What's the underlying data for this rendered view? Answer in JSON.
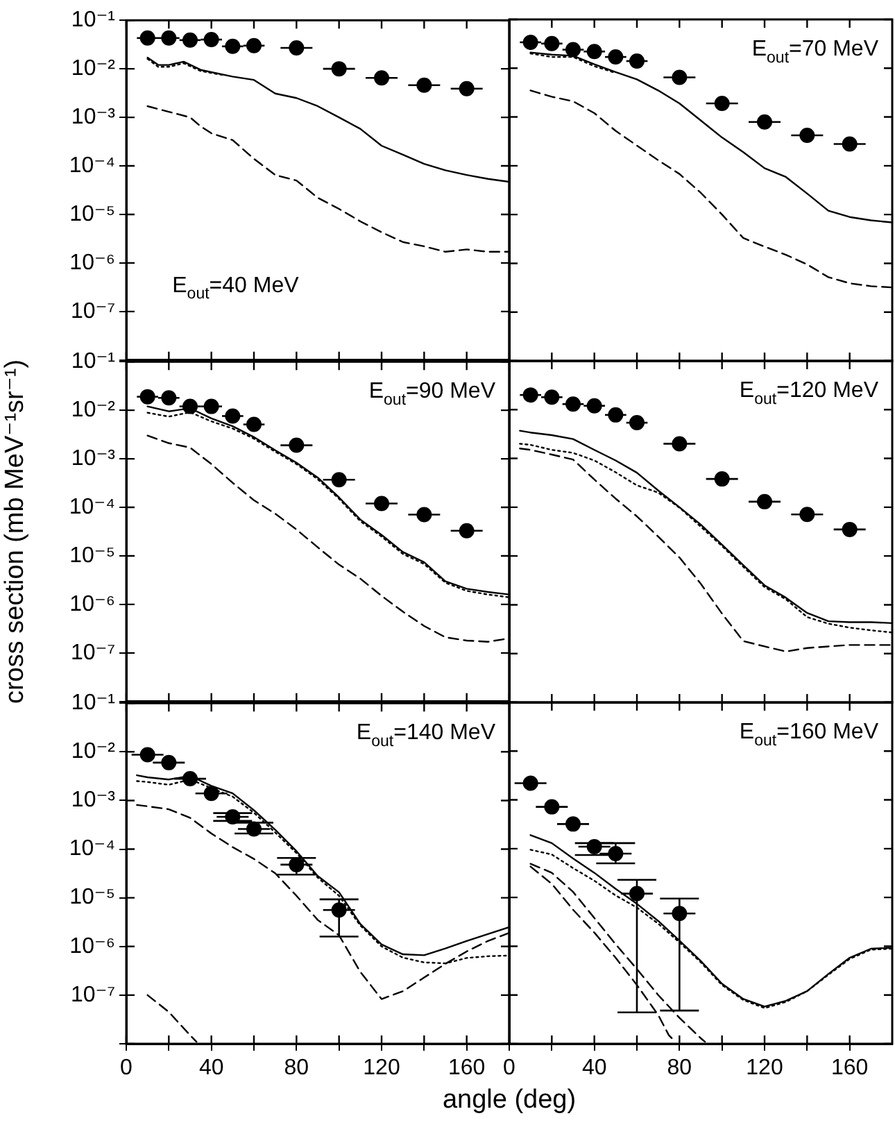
{
  "chart_data": [
    {
      "type": "line",
      "log": "y",
      "xlim": [
        0,
        180
      ],
      "ylim": [
        1e-08,
        0.1
      ],
      "tick_labels": "y",
      "xticks": [
        0,
        {
          "value": 20,
          "label": null
        },
        40,
        {
          "value": 60,
          "label": null
        },
        80,
        {
          "value": 100,
          "label": null
        },
        120,
        {
          "value": 140,
          "label": null
        },
        160
      ],
      "yticks": [
        {
          "value": 0.1,
          "label": "10⁻¹"
        },
        {
          "value": 0.01,
          "label": "10⁻²"
        },
        {
          "value": 0.001,
          "label": "10⁻³"
        },
        {
          "value": 0.0001,
          "label": "10⁻⁴"
        },
        {
          "value": 1e-05,
          "label": "10⁻⁵"
        },
        {
          "value": 1e-06,
          "label": "10⁻⁶"
        },
        {
          "value": 1e-07,
          "label": "10⁻⁷"
        },
        {
          "value": 1e-08,
          "label": null
        }
      ],
      "annotations": [
        "E$_{out}$=40 MeV"
      ],
      "series": [
        {
          "type": "scatter",
          "color": "#000000",
          "marker": "circle",
          "x": [
            10,
            20,
            30,
            40,
            50,
            60,
            80,
            100,
            120,
            140,
            160
          ],
          "values": [
            0.043,
            0.043,
            0.039,
            0.04,
            0.029,
            0.03,
            0.027,
            0.01,
            0.0065,
            0.0046,
            0.0039
          ],
          "xerrors": [
            5,
            5,
            5,
            5,
            5,
            5,
            7.5,
            7.5,
            7.5,
            7.5,
            7.5
          ]
        },
        {
          "type": "line",
          "color": "#000000",
          "line_style": "solid",
          "x": [
            10,
            15,
            20,
            27,
            35,
            50,
            60,
            70,
            80,
            90,
            100,
            110,
            120,
            130,
            140,
            150,
            160,
            170,
            180
          ],
          "values": [
            0.017,
            0.012,
            0.012,
            0.014,
            0.0095,
            0.0069,
            0.0059,
            0.0031,
            0.0025,
            0.0017,
            0.001,
            0.00058,
            0.00026,
            0.00017,
            0.00011,
            8.1e-05,
            6.5e-05,
            5.4e-05,
            4.7e-05
          ]
        },
        {
          "type": "line",
          "color": "#000000",
          "line_style": "dotted",
          "x": [
            10,
            15,
            20,
            27,
            35,
            45
          ],
          "values": [
            0.016,
            0.011,
            0.011,
            0.013,
            0.009,
            0.0075
          ]
        },
        {
          "type": "line",
          "color": "#000000",
          "line_style": "dashed",
          "x": [
            10,
            20,
            30,
            35,
            40,
            50,
            60,
            70,
            80,
            90,
            100,
            110,
            120,
            130,
            140,
            150,
            160,
            170,
            180
          ],
          "values": [
            0.0017,
            0.0013,
            0.001,
            0.00065,
            0.00047,
            0.00034,
            0.00014,
            6.5e-05,
            5e-05,
            2.2e-05,
            1.3e-05,
            7.2e-06,
            4.3e-06,
            2.7e-06,
            2.2e-06,
            1.7e-06,
            1.9e-06,
            1.7e-06,
            1.7e-06
          ]
        }
      ]
    },
    {
      "type": "line",
      "log": "y",
      "xlim": [
        0,
        180
      ],
      "ylim": [
        1e-08,
        0.1
      ],
      "tick_labels": false,
      "xticks": [
        0,
        {
          "value": 20,
          "label": null
        },
        40,
        {
          "value": 60,
          "label": null
        },
        80,
        {
          "value": 100,
          "label": null
        },
        120,
        {
          "value": 140,
          "label": null
        },
        160
      ],
      "yticks": [
        {
          "value": 0.1,
          "label": null
        },
        {
          "value": 0.01,
          "label": null
        },
        {
          "value": 0.001,
          "label": null
        },
        {
          "value": 0.0001,
          "label": null
        },
        {
          "value": 1e-05,
          "label": null
        },
        {
          "value": 1e-06,
          "label": null
        },
        {
          "value": 1e-07,
          "label": null
        },
        {
          "value": 1e-08,
          "label": null
        }
      ],
      "annotations": [
        "E$_{out}$=70 MeV"
      ],
      "series": [
        {
          "type": "scatter",
          "color": "#000000",
          "marker": "circle",
          "x": [
            10,
            20,
            30,
            40,
            50,
            60,
            80,
            100,
            120,
            140,
            160
          ],
          "values": [
            0.034,
            0.032,
            0.024,
            0.022,
            0.017,
            0.014,
            0.0065,
            0.0019,
            0.00079,
            0.00042,
            0.00028
          ],
          "xerrors": [
            5,
            5,
            5,
            5,
            5,
            5,
            7.5,
            7.5,
            7.5,
            7.5,
            7.5
          ]
        },
        {
          "type": "line",
          "color": "#000000",
          "line_style": "solid",
          "x": [
            10,
            20,
            30,
            40,
            50,
            60,
            70,
            80,
            90,
            100,
            110,
            120,
            130,
            140,
            150,
            160,
            170,
            180
          ],
          "values": [
            0.021,
            0.019,
            0.018,
            0.012,
            0.0083,
            0.0059,
            0.0035,
            0.0019,
            0.00085,
            0.00038,
            0.00019,
            8.9e-05,
            5.9e-05,
            2.7e-05,
            1.2e-05,
            8.9e-06,
            7.6e-06,
            6.9e-06
          ]
        },
        {
          "type": "line",
          "color": "#000000",
          "line_style": "dotted",
          "x": [
            10,
            20,
            30,
            40,
            50
          ],
          "values": [
            0.02,
            0.017,
            0.017,
            0.011,
            0.008
          ]
        },
        {
          "type": "line",
          "color": "#000000",
          "line_style": "dashed",
          "x": [
            10,
            20,
            30,
            40,
            50,
            60,
            70,
            80,
            90,
            100,
            110,
            120,
            130,
            140,
            150,
            160,
            170,
            180
          ],
          "values": [
            0.0035,
            0.0026,
            0.0021,
            0.0012,
            0.00052,
            0.00026,
            0.00013,
            6.8e-05,
            2.8e-05,
            1e-05,
            3.3e-06,
            2.2e-06,
            1.5e-06,
            9.5e-07,
            5.2e-07,
            3.9e-07,
            3.4e-07,
            3.2e-07
          ]
        }
      ]
    },
    {
      "type": "line",
      "log": "y",
      "xlim": [
        0,
        180
      ],
      "ylim": [
        1e-08,
        0.1
      ],
      "tick_labels": "y",
      "ylabel": "cross section (mb MeV⁻¹sr⁻¹)",
      "xticks": [
        0,
        {
          "value": 20,
          "label": null
        },
        40,
        {
          "value": 60,
          "label": null
        },
        80,
        {
          "value": 100,
          "label": null
        },
        120,
        {
          "value": 140,
          "label": null
        },
        160
      ],
      "yticks": [
        {
          "value": 0.1,
          "label": "10⁻¹"
        },
        {
          "value": 0.01,
          "label": "10⁻²"
        },
        {
          "value": 0.001,
          "label": "10⁻³"
        },
        {
          "value": 0.0001,
          "label": "10⁻⁴"
        },
        {
          "value": 1e-05,
          "label": "10⁻⁵"
        },
        {
          "value": 1e-06,
          "label": "10⁻⁶"
        },
        {
          "value": 1e-07,
          "label": "10⁻⁷"
        },
        {
          "value": 1e-08,
          "label": null
        }
      ],
      "annotations": [
        "E$_{out}$=90 MeV"
      ],
      "series": [
        {
          "type": "scatter",
          "color": "#000000",
          "marker": "circle",
          "x": [
            10,
            20,
            30,
            40,
            50,
            60,
            80,
            100,
            120,
            140,
            160
          ],
          "values": [
            0.019,
            0.018,
            0.012,
            0.012,
            0.0076,
            0.0051,
            0.0019,
            0.00037,
            0.00012,
            7.1e-05,
            3.3e-05
          ],
          "xerrors": [
            5,
            5,
            5,
            5,
            5,
            5,
            7.5,
            7.5,
            7.5,
            7.5,
            7.5
          ]
        },
        {
          "type": "line",
          "color": "#000000",
          "line_style": "solid",
          "x": [
            10,
            20,
            30,
            40,
            50,
            60,
            70,
            80,
            90,
            100,
            110,
            120,
            130,
            140,
            150,
            160,
            170,
            180
          ],
          "values": [
            0.012,
            0.0095,
            0.011,
            0.0068,
            0.0047,
            0.0028,
            0.0015,
            0.00083,
            0.00041,
            0.00016,
            5.6e-05,
            2.7e-05,
            1.2e-05,
            7.4e-06,
            3e-06,
            2.1e-06,
            1.8e-06,
            1.6e-06
          ]
        },
        {
          "type": "line",
          "color": "#000000",
          "line_style": "dotted",
          "x": [
            10,
            20,
            30,
            40,
            50,
            60,
            70,
            80,
            90,
            100,
            110,
            120,
            130,
            140,
            150,
            160,
            170,
            180
          ],
          "values": [
            0.0089,
            0.0074,
            0.0091,
            0.0059,
            0.0042,
            0.0026,
            0.0014,
            0.00078,
            0.00038,
            0.00015,
            5.2e-05,
            2.5e-05,
            1.1e-05,
            6.8e-06,
            2.8e-06,
            1.9e-06,
            1.6e-06,
            1.4e-06
          ]
        },
        {
          "type": "line",
          "color": "#000000",
          "line_style": "dashed",
          "x": [
            10,
            20,
            30,
            40,
            50,
            60,
            70,
            80,
            90,
            100,
            110,
            120,
            130,
            140,
            150,
            160,
            170,
            180
          ],
          "values": [
            0.003,
            0.0021,
            0.0017,
            0.00078,
            0.00032,
            0.00014,
            7.4e-05,
            3.5e-05,
            1.5e-05,
            6.6e-06,
            3.4e-06,
            1.5e-06,
            7.1e-07,
            3.6e-07,
            2.1e-07,
            1.8e-07,
            1.7e-07,
            2e-07
          ]
        }
      ]
    },
    {
      "type": "line",
      "log": "y",
      "xlim": [
        0,
        180
      ],
      "ylim": [
        1e-08,
        0.1
      ],
      "tick_labels": false,
      "xticks": [
        0,
        {
          "value": 20,
          "label": null
        },
        40,
        {
          "value": 60,
          "label": null
        },
        80,
        {
          "value": 100,
          "label": null
        },
        120,
        {
          "value": 140,
          "label": null
        },
        160
      ],
      "yticks": [
        {
          "value": 0.1,
          "label": null
        },
        {
          "value": 0.01,
          "label": null
        },
        {
          "value": 0.001,
          "label": null
        },
        {
          "value": 0.0001,
          "label": null
        },
        {
          "value": 1e-05,
          "label": null
        },
        {
          "value": 1e-06,
          "label": null
        },
        {
          "value": 1e-07,
          "label": null
        },
        {
          "value": 1e-08,
          "label": null
        }
      ],
      "annotations": [
        "E$_{out}$=120 MeV"
      ],
      "series": [
        {
          "type": "scatter",
          "color": "#000000",
          "marker": "circle",
          "x": [
            10,
            20,
            30,
            40,
            50,
            60,
            80,
            100,
            120,
            140,
            160
          ],
          "values": [
            0.02,
            0.018,
            0.013,
            0.012,
            0.0078,
            0.0054,
            0.002,
            0.00038,
            0.00013,
            7.1e-05,
            3.5e-05
          ],
          "xerrors": [
            5,
            5,
            5,
            5,
            5,
            5,
            7.5,
            7.5,
            7.5,
            7.5,
            7.5
          ]
        },
        {
          "type": "line",
          "color": "#000000",
          "line_style": "solid",
          "x": [
            5,
            10,
            20,
            30,
            40,
            50,
            60,
            70,
            80,
            90,
            100,
            110,
            120,
            130,
            140,
            150,
            160,
            170,
            180
          ],
          "values": [
            0.0037,
            0.0034,
            0.003,
            0.0025,
            0.0015,
            0.00091,
            0.00051,
            0.00022,
            0.0001,
            4.4e-05,
            1.7e-05,
            6.5e-06,
            2.5e-06,
            1.4e-06,
            6.8e-07,
            4.6e-07,
            4.4e-07,
            4.4e-07,
            4.2e-07
          ]
        },
        {
          "type": "line",
          "color": "#000000",
          "line_style": "dotted",
          "x": [
            5,
            10,
            20,
            30,
            40,
            50,
            60,
            70,
            80,
            90,
            100,
            110,
            120,
            130,
            140,
            150,
            160,
            170,
            180
          ],
          "values": [
            0.002,
            0.0019,
            0.0015,
            0.0013,
            0.00091,
            0.00052,
            0.00028,
            0.0002,
            9.8e-05,
            4e-05,
            1.6e-05,
            6e-06,
            2.3e-06,
            1.3e-06,
            5.6e-07,
            4.1e-07,
            3.4e-07,
            3e-07,
            2.7e-07
          ]
        },
        {
          "type": "line",
          "color": "#000000",
          "line_style": "dashed",
          "x": [
            5,
            10,
            20,
            30,
            40,
            50,
            60,
            70,
            80,
            90,
            100,
            110,
            120,
            130,
            140,
            150,
            160,
            170,
            180
          ],
          "values": [
            0.0016,
            0.0015,
            0.0012,
            0.00095,
            0.00037,
            0.00015,
            6.5e-05,
            2.5e-05,
            9.3e-06,
            2.7e-06,
            6.6e-07,
            1.8e-07,
            1.4e-07,
            1.1e-07,
            1.3e-07,
            1.4e-07,
            1.5e-07,
            1.5e-07,
            1.5e-07
          ]
        }
      ]
    },
    {
      "type": "line",
      "log": "y",
      "xlim": [
        0,
        180
      ],
      "ylim": [
        1e-08,
        0.1
      ],
      "xlabel": "angle (deg)",
      "xticks": [
        0,
        {
          "value": 20,
          "label": null
        },
        40,
        {
          "value": 60,
          "label": null
        },
        80,
        {
          "value": 100,
          "label": null
        },
        120,
        {
          "value": 140,
          "label": null
        },
        160
      ],
      "yticks": [
        {
          "value": 0.1,
          "label": "10⁻¹"
        },
        {
          "value": 0.01,
          "label": "10⁻²"
        },
        {
          "value": 0.001,
          "label": "10⁻³"
        },
        {
          "value": 0.0001,
          "label": "10⁻⁴"
        },
        {
          "value": 1e-05,
          "label": "10⁻⁵"
        },
        {
          "value": 1e-06,
          "label": "10⁻⁶"
        },
        {
          "value": 1e-07,
          "label": "10⁻⁷"
        },
        {
          "value": 1e-08,
          "label": null
        }
      ],
      "annotations": [
        "E$_{out}$=140 MeV"
      ],
      "series": [
        {
          "type": "scatter",
          "color": "#000000",
          "marker": "circle",
          "x": [
            10,
            20,
            30,
            40,
            50,
            60,
            80,
            100
          ],
          "values": [
            0.0087,
            0.006,
            0.0028,
            0.0014,
            0.00046,
            0.00026,
            4.8e-05,
            5.6e-06
          ],
          "xerrors": [
            7.5,
            7.5,
            7.5,
            7.5,
            7.5,
            7.5,
            7.5,
            7.5
          ],
          "errors": [
            null,
            null,
            null,
            null,
            [
              0.00038,
              0.00055
            ],
            [
              0.00021,
              0.00035
            ],
            [
              3e-05,
              6.6e-05
            ],
            [
              1.6e-06,
              9.3e-06
            ]
          ]
        },
        {
          "type": "line",
          "color": "#000000",
          "line_style": "solid",
          "x": [
            5,
            10,
            20,
            30,
            40,
            50,
            60,
            70,
            80,
            90,
            100,
            110,
            120,
            130,
            140,
            150,
            160,
            170,
            180
          ],
          "values": [
            0.0033,
            0.003,
            0.0027,
            0.0032,
            0.002,
            0.0014,
            0.00063,
            0.00025,
            9.1e-05,
            2.8e-05,
            1.3e-05,
            2.9e-06,
            1.1e-06,
            6.9e-07,
            6.6e-07,
            9.1e-07,
            1.3e-06,
            1.8e-06,
            2.5e-06
          ]
        },
        {
          "type": "line",
          "color": "#000000",
          "line_style": "dotted",
          "x": [
            5,
            10,
            20,
            30,
            40,
            50,
            60,
            70,
            80,
            90,
            100,
            110,
            120,
            130,
            140,
            150,
            160,
            170,
            180
          ],
          "values": [
            0.0025,
            0.0024,
            0.0021,
            0.0027,
            0.0018,
            0.0012,
            0.00056,
            0.00022,
            8.3e-05,
            2.6e-05,
            1.1e-05,
            2.7e-06,
            1e-06,
            5.9e-07,
            4.7e-07,
            4.5e-07,
            5.8e-07,
            6.3e-07,
            6.5e-07
          ]
        },
        {
          "type": "line",
          "color": "#000000",
          "line_style": "dashed",
          "x": [
            5,
            10,
            20,
            30,
            40,
            50,
            60,
            70,
            80,
            90,
            100,
            110,
            120,
            130,
            140,
            150,
            160,
            170,
            180
          ],
          "values": [
            0.00081,
            0.00076,
            0.00066,
            0.00044,
            0.00021,
            0.00011,
            6.3e-05,
            3.2e-05,
            1.1e-05,
            3.5e-06,
            1.7e-06,
            3e-07,
            8.3e-08,
            1.2e-07,
            2.3e-07,
            4.4e-07,
            7.9e-07,
            1.3e-06,
            1.9e-06
          ]
        },
        {
          "type": "line",
          "color": "#000000",
          "line_style": "dashed",
          "x": [
            10,
            20,
            30,
            33
          ],
          "values": [
            1e-07,
            4.5e-08,
            1.5e-08,
            1.1e-08
          ]
        }
      ]
    },
    {
      "type": "line",
      "log": "y",
      "xlim": [
        0,
        180
      ],
      "ylim": [
        1e-08,
        0.1
      ],
      "tick_labels": "x",
      "xticks": [
        0,
        {
          "value": 20,
          "label": null
        },
        40,
        {
          "value": 60,
          "label": null
        },
        80,
        {
          "value": 100,
          "label": null
        },
        120,
        {
          "value": 140,
          "label": null
        },
        160
      ],
      "yticks": [
        {
          "value": 0.1,
          "label": null
        },
        {
          "value": 0.01,
          "label": null
        },
        {
          "value": 0.001,
          "label": null
        },
        {
          "value": 0.0001,
          "label": null
        },
        {
          "value": 1e-05,
          "label": null
        },
        {
          "value": 1e-06,
          "label": null
        },
        {
          "value": 1e-07,
          "label": null
        },
        {
          "value": 1e-08,
          "label": null
        }
      ],
      "annotations": [
        "E$_{out}$=160 MeV"
      ],
      "series": [
        {
          "type": "scatter",
          "color": "#000000",
          "marker": "circle",
          "x": [
            10,
            20,
            30,
            40,
            50,
            60,
            80
          ],
          "values": [
            0.0022,
            0.00072,
            0.00032,
            0.00011,
            7.9e-05,
            1.2e-05,
            4.7e-06
          ],
          "xerrors": [
            7.5,
            7.5,
            7.5,
            7.5,
            7.5,
            7.5,
            7.5
          ],
          "errors": [
            null,
            null,
            null,
            [
              7.4e-05,
              0.00013
            ],
            [
              5e-05,
              0.00013
            ],
            [
              4.4e-08,
              2.3e-05
            ],
            [
              4.8e-08,
              9.5e-06
            ]
          ]
        },
        {
          "type": "line",
          "color": "#000000",
          "line_style": "solid",
          "x": [
            10,
            20,
            30,
            40,
            50,
            60,
            70,
            80,
            90,
            100,
            110,
            120,
            130,
            140,
            150,
            160,
            170,
            180
          ],
          "values": [
            0.00019,
            0.00013,
            6.3e-05,
            3.2e-05,
            1.5e-05,
            7.4e-06,
            3.3e-06,
            1.3e-06,
            5e-07,
            1.7e-07,
            8.3e-08,
            5.8e-08,
            7.6e-08,
            1.2e-07,
            2.7e-07,
            5.8e-07,
            8.9e-07,
            9.3e-07
          ]
        },
        {
          "type": "line",
          "color": "#000000",
          "line_style": "dotted",
          "x": [
            10,
            20,
            30,
            40,
            50,
            60,
            70,
            80,
            90,
            100,
            110,
            120,
            130,
            140,
            150,
            160,
            170,
            180
          ],
          "values": [
            9.5e-05,
            7.6e-05,
            4e-05,
            2.2e-05,
            1.1e-05,
            6.2e-06,
            2.9e-06,
            1.2e-06,
            4.7e-07,
            1.6e-07,
            7.9e-08,
            5.4e-08,
            7.2e-08,
            1.2e-07,
            2.6e-07,
            5.5e-07,
            8.5e-07,
            8.9e-07
          ]
        },
        {
          "type": "line",
          "color": "#000000",
          "line_style": "dashed",
          "x": [
            10,
            20,
            30,
            40,
            50,
            60,
            70,
            80,
            90,
            92
          ],
          "values": [
            4.9e-05,
            3.2e-05,
            1.3e-05,
            3.8e-06,
            1.1e-06,
            3.4e-07,
            1e-07,
            3.4e-08,
            1.3e-08,
            1.1e-08
          ]
        },
        {
          "type": "line",
          "color": "#000000",
          "line_style": "dashed",
          "x": [
            10,
            20,
            30,
            40,
            50,
            60,
            70,
            75,
            78
          ],
          "values": [
            4.3e-05,
            1.9e-05,
            5.6e-06,
            1.9e-06,
            5.8e-07,
            1.6e-07,
            3.9e-08,
            1.5e-08,
            1.1e-08
          ]
        }
      ]
    }
  ]
}
